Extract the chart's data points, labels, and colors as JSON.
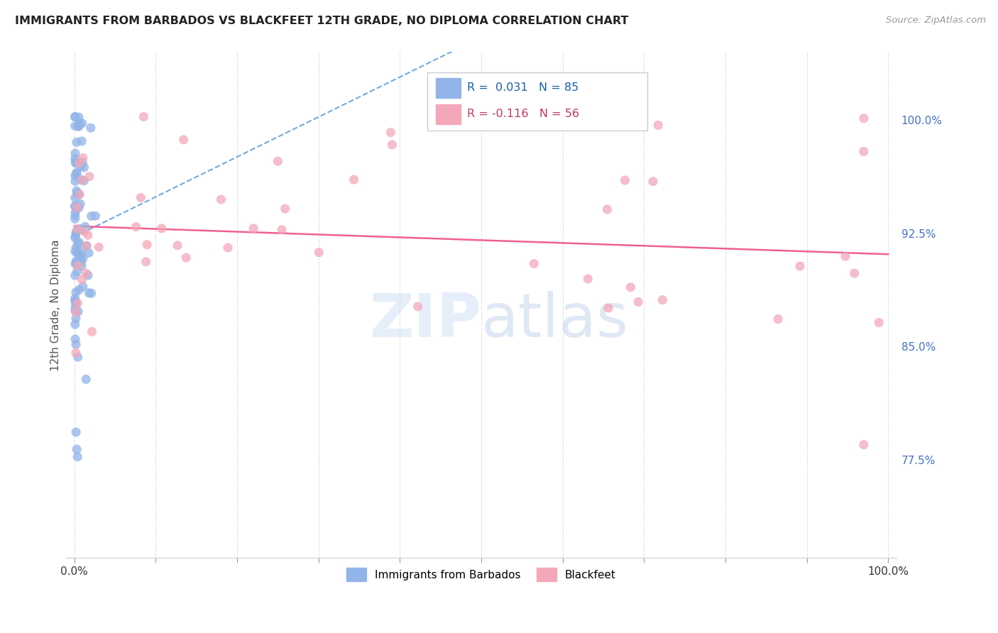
{
  "title": "IMMIGRANTS FROM BARBADOS VS BLACKFEET 12TH GRADE, NO DIPLOMA CORRELATION CHART",
  "source": "Source: ZipAtlas.com",
  "ylabel": "12th Grade, No Diploma",
  "yticklabels": [
    "77.5%",
    "85.0%",
    "92.5%",
    "100.0%"
  ],
  "ytick_values": [
    0.775,
    0.85,
    0.925,
    1.0
  ],
  "barbados_R": 0.031,
  "barbados_N": 85,
  "blackfeet_R": -0.116,
  "blackfeet_N": 56,
  "barbados_color": "#92b4e8",
  "blackfeet_color": "#f4a7b9",
  "barbados_line_color": "#5b9bd5",
  "blackfeet_line_color": "#f06090",
  "legend_R1_text": "R =  0.031",
  "legend_N1_text": "N = 85",
  "legend_R2_text": "R = -0.116",
  "legend_N2_text": "N = 56",
  "watermark_text": "ZIPatlas",
  "legend1_label": "Immigrants from Barbados",
  "legend2_label": "Blackfeet"
}
